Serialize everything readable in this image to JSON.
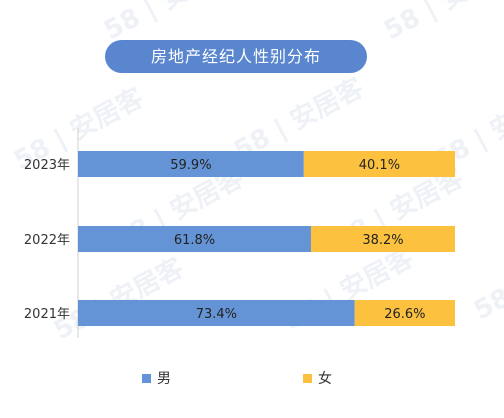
{
  "watermark_text": "58 | 安居客",
  "chart_data": {
    "type": "bar",
    "orientation": "horizontal",
    "stacked": true,
    "percent": true,
    "title": "房地产经纪人性别分布",
    "categories": [
      "2023年",
      "2022年",
      "2021年"
    ],
    "series": [
      {
        "name": "男",
        "values": [
          59.9,
          61.8,
          73.4
        ],
        "labels": [
          "59.9%",
          "61.8%",
          "73.4%"
        ],
        "color": "#6594d6"
      },
      {
        "name": "女",
        "values": [
          40.1,
          38.2,
          26.6
        ],
        "labels": [
          "40.1%",
          "38.2%",
          "26.6%"
        ],
        "color": "#fcc23f"
      }
    ],
    "xlim": [
      0,
      100
    ],
    "grid": false,
    "legend_position": "bottom"
  }
}
